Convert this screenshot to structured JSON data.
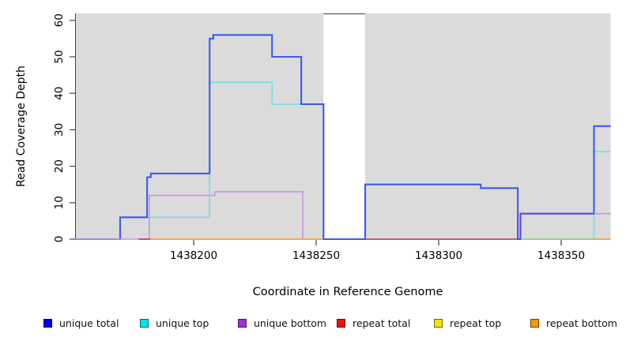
{
  "chart_data": {
    "type": "line",
    "subtype": "step-coverage",
    "title": "",
    "xlabel": "Coordinate in Reference Genome",
    "ylabel": "Read Coverage Depth",
    "xlim": [
      1438151.6,
      1438374.2
    ],
    "ylim": [
      0,
      61.9
    ],
    "grid": false,
    "legend_position": "bottom",
    "panel_color": "#DBDBDB",
    "gap_border_color": "#6e6e6e",
    "axis_color": "#444444",
    "panels": [
      {
        "x0": 1438151.6,
        "x1": 1438253.0
      },
      {
        "x0": 1438270.0,
        "x1": 1438370.2
      }
    ],
    "gap_top_border": {
      "x0": 1438253.0,
      "x1": 1438270.0
    },
    "x_ticks": [
      {
        "value": 1438200,
        "label": "1438200"
      },
      {
        "value": 1438250,
        "label": "1438250"
      },
      {
        "value": 1438300,
        "label": "1438300"
      },
      {
        "value": 1438350,
        "label": "1438350"
      }
    ],
    "y_ticks": [
      {
        "value": 0,
        "label": "0"
      },
      {
        "value": 10,
        "label": "10"
      },
      {
        "value": 20,
        "label": "20"
      },
      {
        "value": 30,
        "label": "30"
      },
      {
        "value": 40,
        "label": "40"
      },
      {
        "value": 50,
        "label": "50"
      },
      {
        "value": 60,
        "label": "60"
      }
    ],
    "series": [
      {
        "name": "unique top",
        "segments": [
          {
            "color": "#72DEE8",
            "width": 1.6,
            "points": [
              [
                1438151.6,
                0
              ],
              [
                1438170,
                0
              ],
              [
                1438170,
                6
              ],
              [
                1438206.5,
                6
              ],
              [
                1438206.5,
                43
              ],
              [
                1438232,
                43
              ],
              [
                1438232,
                37
              ],
              [
                1438253,
                37
              ],
              [
                1438253,
                0
              ],
              [
                1438363.4,
                0
              ],
              [
                1438363.4,
                24
              ],
              [
                1438370.2,
                24
              ]
            ]
          }
        ]
      },
      {
        "name": "unique total",
        "segments": [
          {
            "color": "#3A5BEF",
            "width": 2.1,
            "points": [
              [
                1438151.6,
                0
              ],
              [
                1438170,
                0
              ],
              [
                1438170,
                6
              ],
              [
                1438181,
                6
              ],
              [
                1438181,
                17
              ],
              [
                1438182.5,
                17
              ],
              [
                1438182.5,
                18
              ],
              [
                1438206.5,
                18
              ],
              [
                1438206.5,
                55
              ],
              [
                1438208,
                55
              ],
              [
                1438208,
                56
              ],
              [
                1438232,
                56
              ],
              [
                1438232,
                50
              ],
              [
                1438243.9,
                50
              ],
              [
                1438243.9,
                37
              ],
              [
                1438253,
                37
              ],
              [
                1438253,
                0
              ],
              [
                1438270,
                0
              ],
              [
                1438270,
                15
              ],
              [
                1438317.2,
                15
              ],
              [
                1438317.2,
                14
              ],
              [
                1438332.3,
                14
              ],
              [
                1438332.3,
                0
              ],
              [
                1438333.4,
                0
              ],
              [
                1438333.4,
                7
              ],
              [
                1438363.4,
                7
              ],
              [
                1438363.4,
                31
              ],
              [
                1438370.2,
                31
              ]
            ]
          }
        ]
      },
      {
        "name": "unique bottom",
        "segments": [
          {
            "color": "#C793E2",
            "width": 1.6,
            "points": [
              [
                1438151.6,
                0
              ],
              [
                1438181.9,
                0
              ],
              [
                1438181.9,
                12
              ],
              [
                1438208.6,
                12
              ],
              [
                1438208.6,
                13
              ],
              [
                1438244.5,
                13
              ],
              [
                1438244.5,
                0
              ]
            ]
          },
          {
            "color": "#5D43E0",
            "width": 1.6,
            "points": [
              [
                1438333.4,
                0
              ],
              [
                1438333.4,
                7
              ],
              [
                1438363.4,
                7
              ]
            ]
          },
          {
            "color": "#C793E2",
            "width": 1.6,
            "points": [
              [
                1438363.4,
                7
              ],
              [
                1438370.2,
                7
              ]
            ]
          }
        ]
      },
      {
        "name": "repeat total",
        "segments": [
          {
            "color": "#CC3355",
            "width": 1.6,
            "points": [
              [
                1438177.5,
                0
              ],
              [
                1438182.3,
                0
              ]
            ]
          },
          {
            "color": "#CC3355",
            "width": 1.6,
            "points": [
              [
                1438270,
                0
              ],
              [
                1438332.3,
                0
              ]
            ]
          }
        ]
      },
      {
        "name": "repeat top",
        "segments": [
          {
            "color": "#84CC84",
            "width": 1.6,
            "points": [
              [
                1438334,
                0
              ],
              [
                1438363.4,
                0
              ]
            ]
          }
        ]
      },
      {
        "name": "repeat bottom",
        "segments": [
          {
            "color": "#FFA126",
            "width": 1.8,
            "points": [
              [
                1438182.3,
                0
              ],
              [
                1438252.6,
                0
              ]
            ]
          },
          {
            "color": "#FFA126",
            "width": 1.8,
            "points": [
              [
                1438363.4,
                0
              ],
              [
                1438370.2,
                0
              ]
            ]
          }
        ]
      }
    ],
    "legend": [
      {
        "label": "unique total",
        "color": "#0000F0"
      },
      {
        "label": "unique top",
        "color": "#00E6F0"
      },
      {
        "label": "unique bottom",
        "color": "#9A30D6"
      },
      {
        "label": "repeat total",
        "color": "#EA1010"
      },
      {
        "label": "repeat top",
        "color": "#F2E600"
      },
      {
        "label": "repeat bottom",
        "color": "#F59A00"
      }
    ]
  }
}
